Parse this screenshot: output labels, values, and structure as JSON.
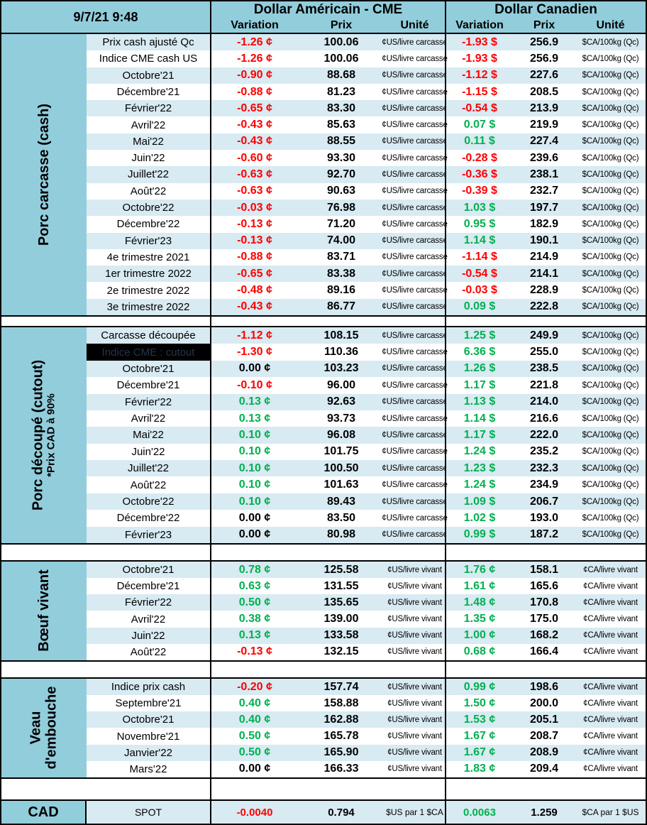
{
  "colors": {
    "header_blue": "#92CDDC",
    "row_stripe_blue": "#D8EAF2",
    "negative_red": "#FF0000",
    "positive_green": "#00B050",
    "highlight_cell_bg": "#000000"
  },
  "header": {
    "datetime": "9/7/21 9:48",
    "us_title": "Dollar Américain - CME",
    "ca_title": "Dollar Canadien",
    "col_variation": "Variation",
    "col_prix": "Prix",
    "col_unite": "Unité"
  },
  "sections": [
    {
      "id": "porc-carcasse-cash",
      "label": "Porc carcasse (cash)",
      "sublabel": "",
      "unit_us": "¢US/livre carcasse",
      "unit_ca": "$CA/100kg (Qc)",
      "rows": [
        {
          "label": "Prix cash ajusté Qc",
          "var_us": "-1.26 ¢",
          "prix_us": "100.06",
          "var_ca": "-1.93 $",
          "prix_ca": "256.9"
        },
        {
          "label": "Indice CME cash US",
          "var_us": "-1.26 ¢",
          "prix_us": "100.06",
          "var_ca": "-1.93 $",
          "prix_ca": "256.9"
        },
        {
          "label": "Octobre'21",
          "var_us": "-0.90 ¢",
          "prix_us": "88.68",
          "var_ca": "-1.12 $",
          "prix_ca": "227.6"
        },
        {
          "label": "Décembre'21",
          "var_us": "-0.88 ¢",
          "prix_us": "81.23",
          "var_ca": "-1.15 $",
          "prix_ca": "208.5"
        },
        {
          "label": "Février'22",
          "var_us": "-0.65 ¢",
          "prix_us": "83.30",
          "var_ca": "-0.54 $",
          "prix_ca": "213.9"
        },
        {
          "label": "Avril'22",
          "var_us": "-0.43 ¢",
          "prix_us": "85.63",
          "var_ca": "0.07 $",
          "prix_ca": "219.9"
        },
        {
          "label": "Mai'22",
          "var_us": "-0.43 ¢",
          "prix_us": "88.55",
          "var_ca": "0.11 $",
          "prix_ca": "227.4"
        },
        {
          "label": "Juin'22",
          "var_us": "-0.60 ¢",
          "prix_us": "93.30",
          "var_ca": "-0.28 $",
          "prix_ca": "239.6"
        },
        {
          "label": "Juillet'22",
          "var_us": "-0.63 ¢",
          "prix_us": "92.70",
          "var_ca": "-0.36 $",
          "prix_ca": "238.1"
        },
        {
          "label": "Août'22",
          "var_us": "-0.63 ¢",
          "prix_us": "90.63",
          "var_ca": "-0.39 $",
          "prix_ca": "232.7"
        },
        {
          "label": "Octobre'22",
          "var_us": "-0.03 ¢",
          "prix_us": "76.98",
          "var_ca": "1.03 $",
          "prix_ca": "197.7"
        },
        {
          "label": "Décembre'22",
          "var_us": "-0.13 ¢",
          "prix_us": "71.20",
          "var_ca": "0.95 $",
          "prix_ca": "182.9"
        },
        {
          "label": "Février'23",
          "var_us": "-0.13 ¢",
          "prix_us": "74.00",
          "var_ca": "1.14 $",
          "prix_ca": "190.1"
        },
        {
          "label": "4e trimestre 2021",
          "var_us": "-0.88 ¢",
          "prix_us": "83.71",
          "var_ca": "-1.14 $",
          "prix_ca": "214.9"
        },
        {
          "label": "1er trimestre 2022",
          "var_us": "-0.65 ¢",
          "prix_us": "83.38",
          "var_ca": "-0.54 $",
          "prix_ca": "214.1"
        },
        {
          "label": "2e trimestre 2022",
          "var_us": "-0.48 ¢",
          "prix_us": "89.16",
          "var_ca": "-0.03 $",
          "prix_ca": "228.9"
        },
        {
          "label": "3e trimestre 2022",
          "var_us": "-0.43 ¢",
          "prix_us": "86.77",
          "var_ca": "0.09 $",
          "prix_ca": "222.8"
        }
      ]
    },
    {
      "id": "porc-decoupe-cutout",
      "label": "Porc découpé (cutout)",
      "sublabel": "*Prix CAD à 90%",
      "unit_us": "¢US/livre carcasse",
      "unit_ca": "$CA/100kg (Qc)",
      "rows": [
        {
          "label": "Carcasse découpée",
          "var_us": "-1.12 ¢",
          "prix_us": "108.15",
          "var_ca": "1.25 $",
          "prix_ca": "249.9"
        },
        {
          "label": "Indice CME : cutout",
          "highlight": true,
          "var_us": "-1.30 ¢",
          "prix_us": "110.36",
          "var_ca": "6.36 $",
          "prix_ca": "255.0"
        },
        {
          "label": "Octobre'21",
          "var_us": "0.00 ¢",
          "prix_us": "103.23",
          "var_ca": "1.26 $",
          "prix_ca": "238.5"
        },
        {
          "label": "Décembre'21",
          "var_us": "-0.10 ¢",
          "prix_us": "96.00",
          "var_ca": "1.17 $",
          "prix_ca": "221.8"
        },
        {
          "label": "Février'22",
          "var_us": "0.13 ¢",
          "prix_us": "92.63",
          "var_ca": "1.13 $",
          "prix_ca": "214.0"
        },
        {
          "label": "Avril'22",
          "var_us": "0.13 ¢",
          "prix_us": "93.73",
          "var_ca": "1.14 $",
          "prix_ca": "216.6"
        },
        {
          "label": "Mai'22",
          "var_us": "0.10 ¢",
          "prix_us": "96.08",
          "var_ca": "1.17 $",
          "prix_ca": "222.0"
        },
        {
          "label": "Juin'22",
          "var_us": "0.10 ¢",
          "prix_us": "101.75",
          "var_ca": "1.24 $",
          "prix_ca": "235.2"
        },
        {
          "label": "Juillet'22",
          "var_us": "0.10 ¢",
          "prix_us": "100.50",
          "var_ca": "1.23 $",
          "prix_ca": "232.3"
        },
        {
          "label": "Août'22",
          "var_us": "0.10 ¢",
          "prix_us": "101.63",
          "var_ca": "1.24 $",
          "prix_ca": "234.9"
        },
        {
          "label": "Octobre'22",
          "var_us": "0.10 ¢",
          "prix_us": "89.43",
          "var_ca": "1.09 $",
          "prix_ca": "206.7"
        },
        {
          "label": "Décembre'22",
          "var_us": "0.00 ¢",
          "prix_us": "83.50",
          "var_ca": "1.02 $",
          "prix_ca": "193.0"
        },
        {
          "label": "Février'23",
          "var_us": "0.00 ¢",
          "prix_us": "80.98",
          "var_ca": "0.99 $",
          "prix_ca": "187.2"
        }
      ]
    },
    {
      "id": "boeuf-vivant",
      "label": "Bœuf vivant",
      "sublabel": "",
      "unit_us": "¢US/livre vivant",
      "unit_ca": "¢CA/livre vivant",
      "rows": [
        {
          "label": "Octobre'21",
          "var_us": "0.78 ¢",
          "prix_us": "125.58",
          "var_ca": "1.76 ¢",
          "prix_ca": "158.1"
        },
        {
          "label": "Décembre'21",
          "var_us": "0.63 ¢",
          "prix_us": "131.55",
          "var_ca": "1.61 ¢",
          "prix_ca": "165.6"
        },
        {
          "label": "Février'22",
          "var_us": "0.50 ¢",
          "prix_us": "135.65",
          "var_ca": "1.48 ¢",
          "prix_ca": "170.8"
        },
        {
          "label": "Avril'22",
          "var_us": "0.38 ¢",
          "prix_us": "139.00",
          "var_ca": "1.35 ¢",
          "prix_ca": "175.0"
        },
        {
          "label": "Juin'22",
          "var_us": "0.13 ¢",
          "prix_us": "133.58",
          "var_ca": "1.00 ¢",
          "prix_ca": "168.2"
        },
        {
          "label": "Août'22",
          "var_us": "-0.13 ¢",
          "prix_us": "132.15",
          "var_ca": "0.68 ¢",
          "prix_ca": "166.4"
        }
      ]
    },
    {
      "id": "veau-embouche",
      "label": "Veau d'embouche",
      "sublabel": "",
      "unit_us": "¢US/livre vivant",
      "unit_ca": "¢CA/livre vivant",
      "rows": [
        {
          "label": "Indice prix cash",
          "var_us": "-0.20 ¢",
          "prix_us": "157.74",
          "var_ca": "0.99 ¢",
          "prix_ca": "198.6"
        },
        {
          "label": "Septembre'21",
          "var_us": "0.40 ¢",
          "prix_us": "158.88",
          "var_ca": "1.50 ¢",
          "prix_ca": "200.0"
        },
        {
          "label": "Octobre'21",
          "var_us": "0.40 ¢",
          "prix_us": "162.88",
          "var_ca": "1.53 ¢",
          "prix_ca": "205.1"
        },
        {
          "label": "Novembre'21",
          "var_us": "0.50 ¢",
          "prix_us": "165.78",
          "var_ca": "1.67 ¢",
          "prix_ca": "208.7"
        },
        {
          "label": "Janvier'22",
          "var_us": "0.50 ¢",
          "prix_us": "165.90",
          "var_ca": "1.67 ¢",
          "prix_ca": "208.9"
        },
        {
          "label": "Mars'22",
          "var_us": "0.00 ¢",
          "prix_us": "166.33",
          "var_ca": "1.83 ¢",
          "prix_ca": "209.4"
        }
      ]
    }
  ],
  "footer": {
    "label": "CAD",
    "row_label": "SPOT",
    "var_us": "-0.0040",
    "prix_us": "0.794",
    "unit_us": "$US par 1 $CA",
    "var_ca": "0.0063",
    "prix_ca": "1.259",
    "unit_ca": "$CA par 1 $US"
  }
}
